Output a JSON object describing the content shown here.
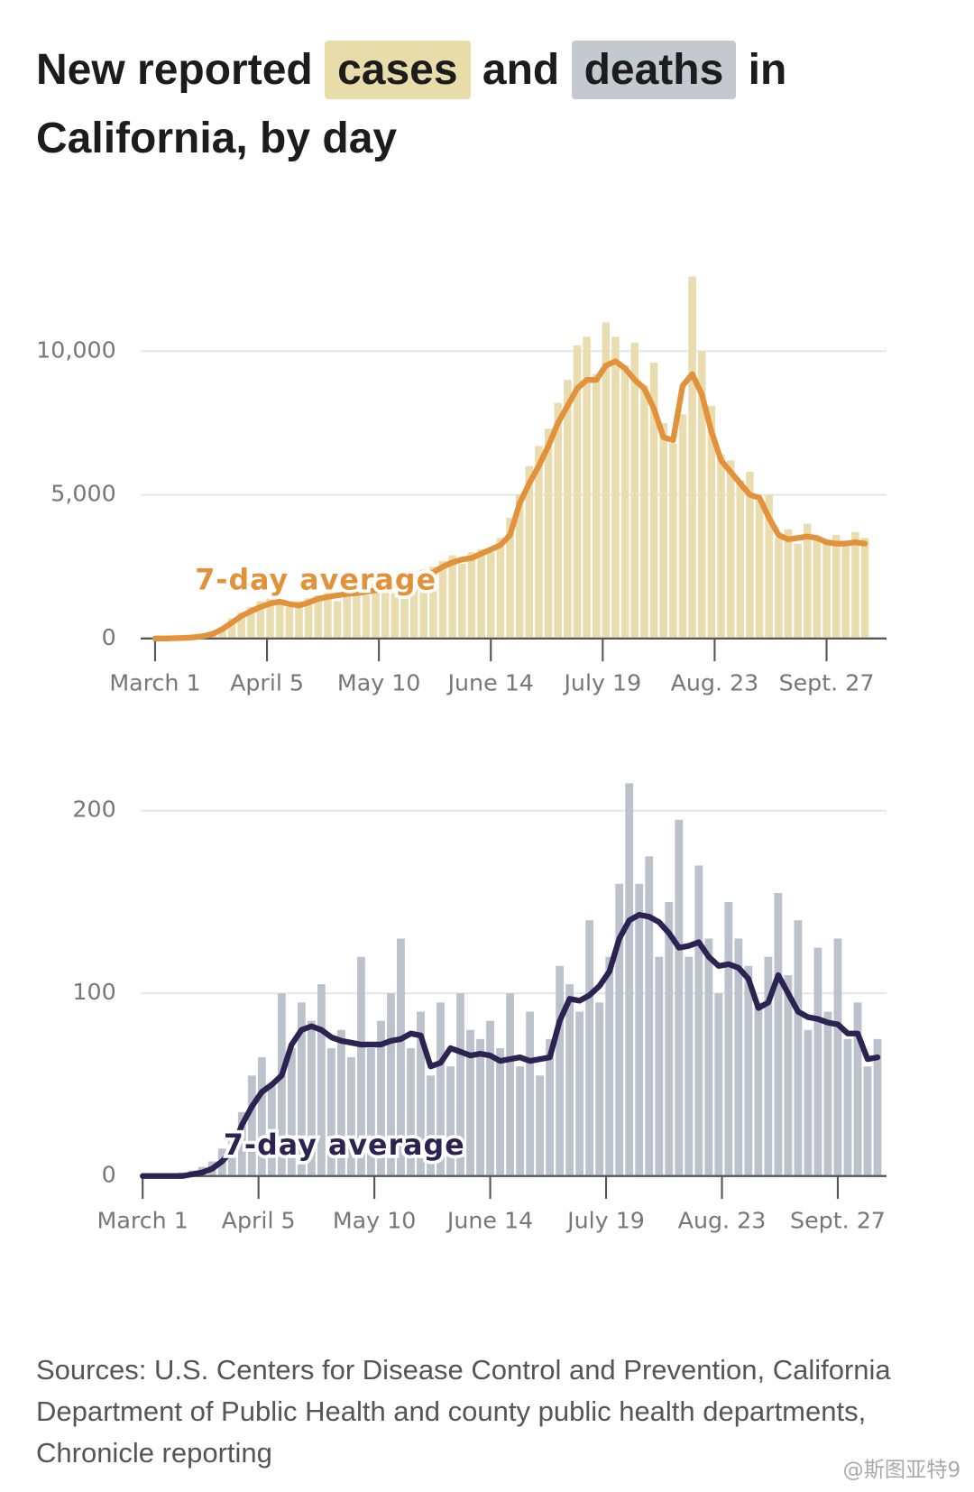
{
  "title": [
    "New reported",
    "cases",
    "and",
    "deaths",
    "in California, by day"
  ],
  "source": "Sources: U.S. Centers for Disease Control and Prevention, California Department of Public Health and county public health departments, Chronicle reporting",
  "watermark": "@斯图亚特9",
  "chart_data": [
    {
      "type": "bar",
      "x": [
        0,
        3,
        6,
        9,
        12,
        15,
        18,
        21,
        24,
        27,
        30,
        33,
        36,
        39,
        42,
        45,
        48,
        51,
        54,
        57,
        60,
        63,
        66,
        69,
        72,
        75,
        78,
        81,
        84,
        87,
        90,
        93,
        96,
        99,
        102,
        105,
        108,
        111,
        114,
        117,
        120,
        123,
        126,
        129,
        132,
        135,
        138,
        141,
        144,
        147,
        150,
        153,
        156,
        159,
        162,
        165,
        168,
        171,
        174,
        177,
        180,
        183,
        186,
        189,
        192,
        195,
        198,
        201,
        204,
        207,
        210,
        213,
        216,
        219,
        222
      ],
      "series": [
        {
          "type": "bar",
          "color": "#e9dcae",
          "values": [
            0,
            0,
            20,
            30,
            60,
            100,
            200,
            400,
            700,
            900,
            1100,
            1300,
            1400,
            1300,
            1100,
            1300,
            1400,
            1500,
            1700,
            1300,
            1600,
            1800,
            1500,
            1900,
            1700,
            1800,
            2100,
            2000,
            2400,
            2500,
            2700,
            2900,
            2600,
            3000,
            3100,
            3000,
            3500,
            4200,
            5000,
            6000,
            6700,
            7300,
            8200,
            9000,
            10200,
            10500,
            9200,
            11000,
            10500,
            9500,
            10300,
            8800,
            9600,
            7500,
            6800,
            7800,
            12600,
            10000,
            8100,
            6400,
            6200,
            5500,
            5800,
            4800,
            5000,
            3500,
            3800,
            3300,
            4000,
            3500,
            3400,
            3600,
            3200,
            3700,
            3500
          ]
        },
        {
          "type": "line",
          "name": "7-day average",
          "color": "#e3923c",
          "values": [
            0,
            0,
            10,
            20,
            40,
            80,
            160,
            320,
            550,
            780,
            950,
            1100,
            1220,
            1280,
            1200,
            1150,
            1250,
            1380,
            1450,
            1500,
            1550,
            1580,
            1620,
            1680,
            1720,
            1780,
            1900,
            2000,
            2150,
            2300,
            2500,
            2650,
            2750,
            2800,
            2950,
            3100,
            3250,
            3600,
            4700,
            5400,
            6000,
            6700,
            7500,
            8100,
            8700,
            9000,
            9000,
            9500,
            9650,
            9400,
            9000,
            8700,
            8000,
            7000,
            6900,
            8800,
            9200,
            8500,
            7200,
            6200,
            5800,
            5400,
            5000,
            4900,
            4200,
            3600,
            3450,
            3500,
            3550,
            3500,
            3350,
            3300,
            3300,
            3350,
            3300
          ]
        }
      ],
      "xlim": [
        -4,
        228
      ],
      "xticks": [
        {
          "value": 0,
          "label": "March 1"
        },
        {
          "value": 35,
          "label": "April 5"
        },
        {
          "value": 70,
          "label": "May 10"
        },
        {
          "value": 105,
          "label": "June 14"
        },
        {
          "value": 140,
          "label": "July 19"
        },
        {
          "value": 175,
          "label": "Aug. 23"
        },
        {
          "value": 210,
          "label": "Sept. 27"
        }
      ],
      "ylim": [
        0,
        13000
      ],
      "yticks": [
        0,
        {
          "value": 5000,
          "label": "5,000"
        },
        {
          "value": 10000,
          "label": "10,000"
        }
      ],
      "grid": true
    },
    {
      "type": "bar",
      "x": [
        0,
        3,
        6,
        9,
        12,
        15,
        18,
        21,
        24,
        27,
        30,
        33,
        36,
        39,
        42,
        45,
        48,
        51,
        54,
        57,
        60,
        63,
        66,
        69,
        72,
        75,
        78,
        81,
        84,
        87,
        90,
        93,
        96,
        99,
        102,
        105,
        108,
        111,
        114,
        117,
        120,
        123,
        126,
        129,
        132,
        135,
        138,
        141,
        144,
        147,
        150,
        153,
        156,
        159,
        162,
        165,
        168,
        171,
        174,
        177,
        180,
        183,
        186,
        189,
        192,
        195,
        198,
        201,
        204,
        207,
        210,
        213,
        216,
        219,
        222
      ],
      "series": [
        {
          "type": "bar",
          "color": "#bcc2cc",
          "values": [
            0,
            0,
            0,
            1,
            2,
            3,
            5,
            8,
            15,
            20,
            35,
            55,
            65,
            50,
            100,
            70,
            95,
            85,
            105,
            70,
            80,
            65,
            120,
            70,
            85,
            100,
            130,
            70,
            90,
            55,
            95,
            60,
            100,
            80,
            75,
            85,
            70,
            100,
            60,
            90,
            55,
            75,
            115,
            105,
            90,
            140,
            95,
            120,
            160,
            215,
            160,
            175,
            120,
            150,
            195,
            120,
            170,
            130,
            100,
            150,
            130,
            115,
            95,
            120,
            155,
            110,
            140,
            80,
            125,
            90,
            130,
            75,
            95,
            60,
            75
          ]
        },
        {
          "type": "line",
          "name": "7-day average",
          "color": "#2c2352",
          "values": [
            0,
            0,
            0,
            0,
            0,
            1,
            2,
            4,
            8,
            14,
            28,
            38,
            46,
            50,
            55,
            72,
            80,
            82,
            80,
            76,
            74,
            73,
            72,
            72,
            72,
            74,
            75,
            78,
            77,
            60,
            62,
            70,
            68,
            66,
            67,
            66,
            63,
            64,
            65,
            63,
            64,
            65,
            85,
            97,
            96,
            99,
            104,
            112,
            130,
            140,
            143,
            142,
            139,
            133,
            125,
            126,
            128,
            120,
            115,
            116,
            114,
            108,
            92,
            95,
            110,
            100,
            90,
            87,
            86,
            84,
            83,
            78,
            78,
            64,
            65
          ]
        }
      ],
      "xlim": [
        -1,
        225
      ],
      "xticks": [
        {
          "value": 0,
          "label": "March 1"
        },
        {
          "value": 35,
          "label": "April 5"
        },
        {
          "value": 70,
          "label": "May 10"
        },
        {
          "value": 105,
          "label": "June 14"
        },
        {
          "value": 140,
          "label": "July 19"
        },
        {
          "value": 175,
          "label": "Aug. 23"
        },
        {
          "value": 210,
          "label": "Sept. 27"
        }
      ],
      "ylim": [
        0,
        220
      ],
      "yticks": [
        0,
        100,
        200
      ],
      "grid": true
    }
  ]
}
